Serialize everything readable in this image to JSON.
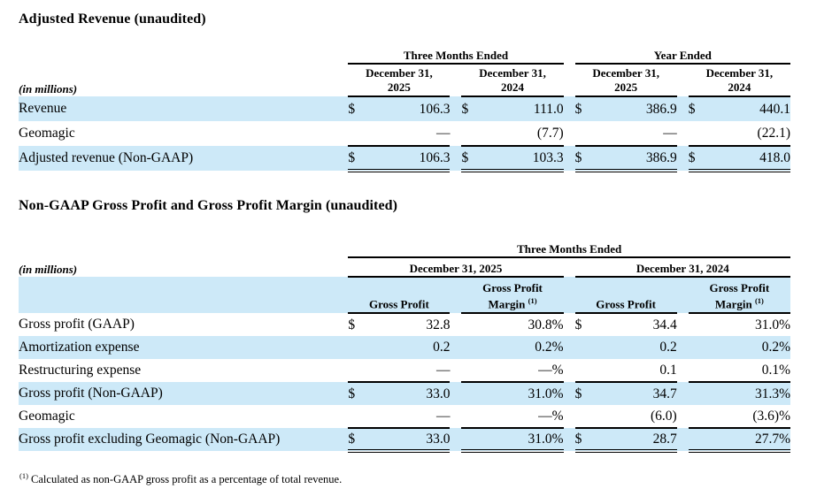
{
  "colors": {
    "highlight": "#cde9f8",
    "text": "#000000"
  },
  "table1": {
    "title": "Adjusted Revenue (unaudited)",
    "units_label": "(in millions)",
    "group_headers": [
      "Three Months Ended",
      "Year Ended"
    ],
    "col_headers": [
      "December 31, 2025",
      "December 31, 2024",
      "December 31, 2025",
      "December 31, 2024"
    ],
    "rows": [
      {
        "label": "Revenue",
        "cells": [
          {
            "cur": "$",
            "val": "106.3"
          },
          {
            "cur": "$",
            "val": "111.0"
          },
          {
            "cur": "$",
            "val": "386.9"
          },
          {
            "cur": "$",
            "val": "440.1"
          }
        ]
      },
      {
        "label": "Geomagic",
        "cells": [
          {
            "cur": "",
            "val": "—"
          },
          {
            "cur": "",
            "val": "(7.7)"
          },
          {
            "cur": "",
            "val": "—"
          },
          {
            "cur": "",
            "val": "(22.1)"
          }
        ]
      },
      {
        "label": "Adjusted revenue (Non-GAAP)",
        "cells": [
          {
            "cur": "$",
            "val": "106.3"
          },
          {
            "cur": "$",
            "val": "103.3"
          },
          {
            "cur": "$",
            "val": "386.9"
          },
          {
            "cur": "$",
            "val": "418.0"
          }
        ]
      }
    ]
  },
  "table2": {
    "title": "Non-GAAP Gross Profit and Gross Profit Margin (unaudited)",
    "units_label": "(in millions)",
    "group_header": "Three Months Ended",
    "date_headers": [
      "December 31, 2025",
      "December 31, 2024"
    ],
    "col_headers": [
      {
        "text": "Gross Profit",
        "sup": ""
      },
      {
        "text": "Gross Profit Margin ",
        "sup": "(1)"
      },
      {
        "text": "Gross Profit",
        "sup": ""
      },
      {
        "text": "Gross Profit Margin ",
        "sup": "(1)"
      }
    ],
    "rows": [
      {
        "label": "Gross profit (GAAP)",
        "cells": [
          {
            "cur": "$",
            "val": "32.8"
          },
          {
            "cur": "",
            "val": "30.8%"
          },
          {
            "cur": "$",
            "val": "34.4"
          },
          {
            "cur": "",
            "val": "31.0%"
          }
        ]
      },
      {
        "label": "Amortization expense",
        "cells": [
          {
            "cur": "",
            "val": "0.2"
          },
          {
            "cur": "",
            "val": "0.2%"
          },
          {
            "cur": "",
            "val": "0.2"
          },
          {
            "cur": "",
            "val": "0.2%"
          }
        ]
      },
      {
        "label": "Restructuring expense",
        "cells": [
          {
            "cur": "",
            "val": "—"
          },
          {
            "cur": "",
            "val": "—%"
          },
          {
            "cur": "",
            "val": "0.1"
          },
          {
            "cur": "",
            "val": "0.1%"
          }
        ]
      },
      {
        "label": "Gross profit (Non-GAAP)",
        "cells": [
          {
            "cur": "$",
            "val": "33.0"
          },
          {
            "cur": "",
            "val": "31.0%"
          },
          {
            "cur": "$",
            "val": "34.7"
          },
          {
            "cur": "",
            "val": "31.3%"
          }
        ]
      },
      {
        "label": "Geomagic",
        "cells": [
          {
            "cur": "",
            "val": "—"
          },
          {
            "cur": "",
            "val": "—%"
          },
          {
            "cur": "",
            "val": "(6.0)"
          },
          {
            "cur": "",
            "val": "(3.6)%"
          }
        ]
      },
      {
        "label": "Gross profit excluding Geomagic (Non-GAAP)",
        "cells": [
          {
            "cur": "$",
            "val": "33.0"
          },
          {
            "cur": "",
            "val": "31.0%"
          },
          {
            "cur": "$",
            "val": "28.7"
          },
          {
            "cur": "",
            "val": "27.7%"
          }
        ]
      }
    ]
  },
  "footnote": {
    "sup": "(1)",
    "text": " Calculated as non-GAAP gross profit as a percentage of total revenue."
  }
}
